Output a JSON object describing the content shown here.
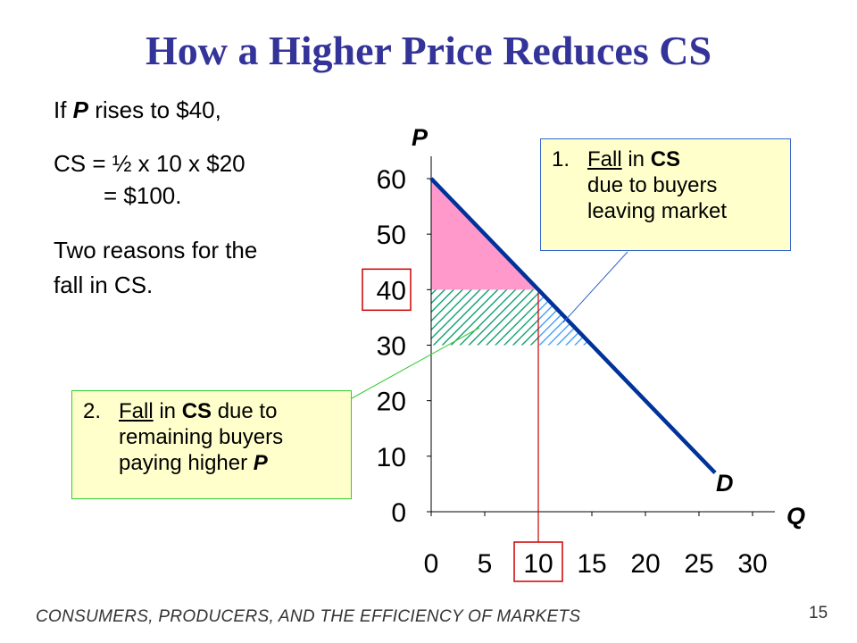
{
  "slide": {
    "title": "How a Higher Price Reduces CS",
    "text_lines": [
      [
        "If ",
        "P",
        " rises to $40,"
      ],
      [
        "CS = ½ x 10 x $20"
      ],
      [
        "= $100."
      ],
      [
        "Two reasons for the"
      ],
      [
        "fall in CS."
      ]
    ],
    "footer": "CONSUMERS, PRODUCERS, AND THE EFFICIENCY OF MARKETS",
    "page_number": "15"
  },
  "callout1": {
    "number": "1.",
    "line1": [
      "Fall",
      " in ",
      "CS"
    ],
    "line2": "due to buyers",
    "line3": "leaving market"
  },
  "callout2": {
    "number": "2.",
    "line1": [
      "Fall",
      " in ",
      "CS",
      " due to"
    ],
    "line2": "remaining buyers",
    "line3": [
      "paying higher ",
      "P"
    ]
  },
  "colors": {
    "title": "#333399",
    "demand_line": "#003399",
    "lost_cs_fill": "#ff99cc",
    "hatch_green": "#009966",
    "hatch_blue": "#3399ff",
    "callout_bg": "#ffffcc",
    "callout1_border": "#3366cc",
    "callout2_border": "#33cc33",
    "highlight_box": "#cc0000"
  },
  "chart_data": {
    "type": "line",
    "xlabel": "Q",
    "ylabel": "P",
    "x_ticks": [
      0,
      5,
      10,
      15,
      20,
      25,
      30
    ],
    "y_ticks": [
      0,
      10,
      20,
      30,
      40,
      50,
      60
    ],
    "xlim": [
      0,
      30
    ],
    "ylim": [
      0,
      60
    ],
    "series": [
      {
        "name": "D",
        "points": [
          [
            0,
            60
          ],
          [
            26.5,
            7
          ]
        ]
      }
    ],
    "regions": [
      {
        "kind": "solid-pink",
        "polygon": [
          [
            0,
            60
          ],
          [
            0,
            40
          ],
          [
            10,
            40
          ]
        ]
      },
      {
        "kind": "hatch-green",
        "polygon": [
          [
            0,
            40
          ],
          [
            10,
            40
          ],
          [
            10,
            30
          ],
          [
            0,
            30
          ]
        ]
      },
      {
        "kind": "hatch-blue",
        "polygon": [
          [
            10,
            40
          ],
          [
            15,
            30
          ],
          [
            10,
            30
          ]
        ]
      }
    ],
    "guide_line": {
      "x": 10,
      "y": 40
    },
    "highlighted_ticks": {
      "x": 10,
      "y": 40
    },
    "grid": false
  }
}
